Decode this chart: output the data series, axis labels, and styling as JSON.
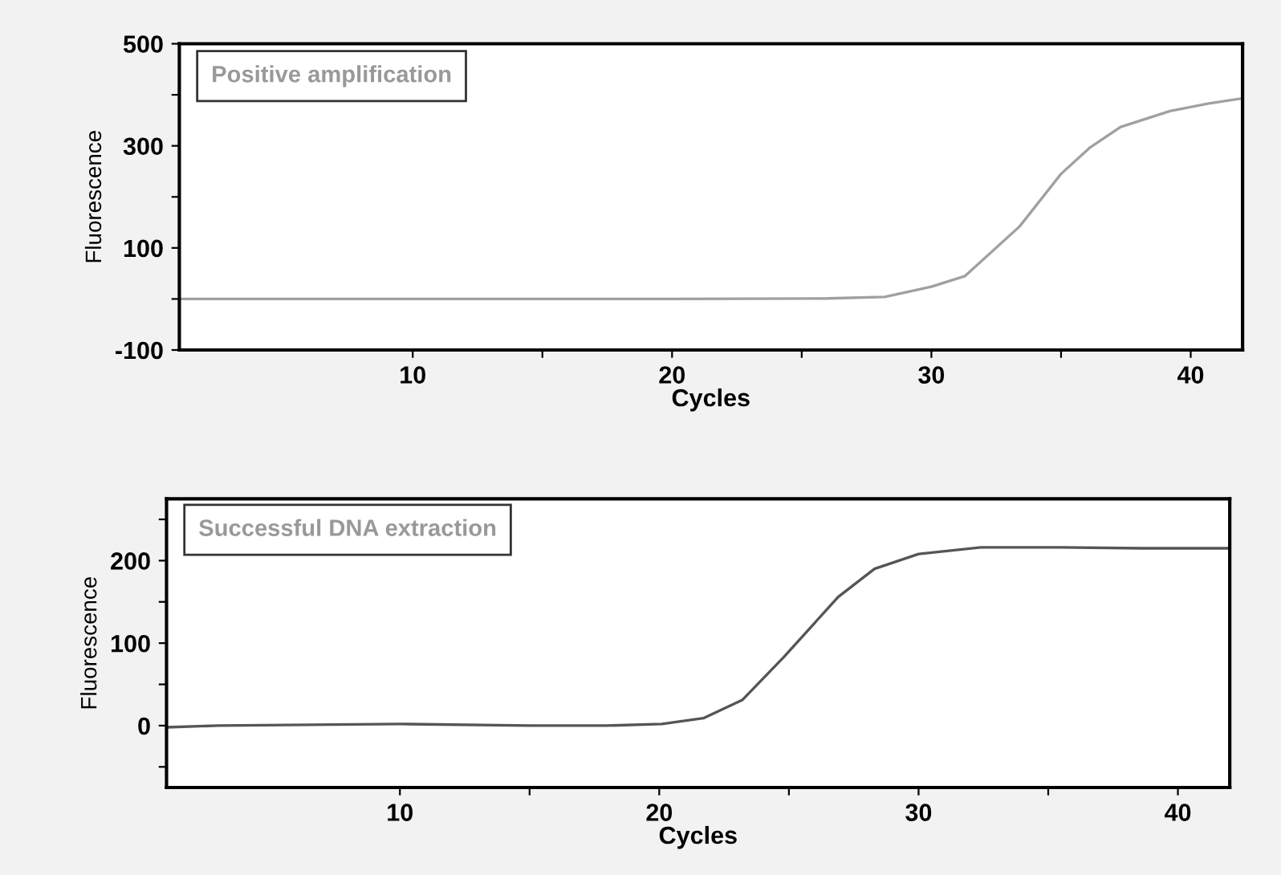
{
  "chart_data": [
    {
      "type": "line",
      "xlabel": "Cycles",
      "ylabel": "Fluorescence",
      "annotations": [
        "Positive amplification"
      ],
      "xlim": [
        1,
        42
      ],
      "xticks": [
        10,
        {
          "value": 15,
          "label": null
        },
        20,
        {
          "value": 25,
          "label": null
        },
        30,
        {
          "value": 35,
          "label": null
        },
        40
      ],
      "ylim": [
        -100,
        500
      ],
      "yticks": [
        -100,
        {
          "value": 0,
          "label": null
        },
        100,
        {
          "value": 200,
          "label": null
        },
        300,
        {
          "value": 400,
          "label": null
        },
        500
      ],
      "grid": false,
      "legend": false,
      "series": [
        {
          "color": "#a0a0a0",
          "x": [
            1,
            10,
            20,
            26,
            28.2,
            30,
            31.3,
            33.4,
            35.0,
            36.1,
            37.3,
            39.2,
            40.7,
            42
          ],
          "values": [
            0,
            0,
            0,
            1,
            4,
            24,
            45,
            142,
            245,
            296,
            337,
            368,
            383,
            393
          ]
        }
      ]
    },
    {
      "type": "line",
      "xlabel": "Cycles",
      "ylabel": "Fluorescence",
      "annotations": [
        "Successful DNA extraction"
      ],
      "xlim": [
        1,
        42
      ],
      "xticks": [
        10,
        {
          "value": 15,
          "label": null
        },
        20,
        {
          "value": 25,
          "label": null
        },
        30,
        {
          "value": 35,
          "label": null
        },
        40
      ],
      "ylim": [
        -75,
        275
      ],
      "yticks": [
        {
          "value": -50,
          "label": null
        },
        0,
        {
          "value": 50,
          "label": null
        },
        100,
        {
          "value": 150,
          "label": null
        },
        200,
        {
          "value": 250,
          "label": null
        }
      ],
      "grid": false,
      "legend": false,
      "series": [
        {
          "color": "#555555",
          "x": [
            1,
            3,
            10,
            15,
            18,
            20.1,
            21.7,
            23.2,
            24.8,
            26.9,
            28.3,
            30,
            32.4,
            35.5,
            38.6,
            42
          ],
          "values": [
            -2,
            0,
            2,
            0,
            0,
            2,
            9,
            31,
            83,
            156,
            190,
            208,
            216,
            216,
            215,
            215
          ]
        }
      ]
    }
  ]
}
